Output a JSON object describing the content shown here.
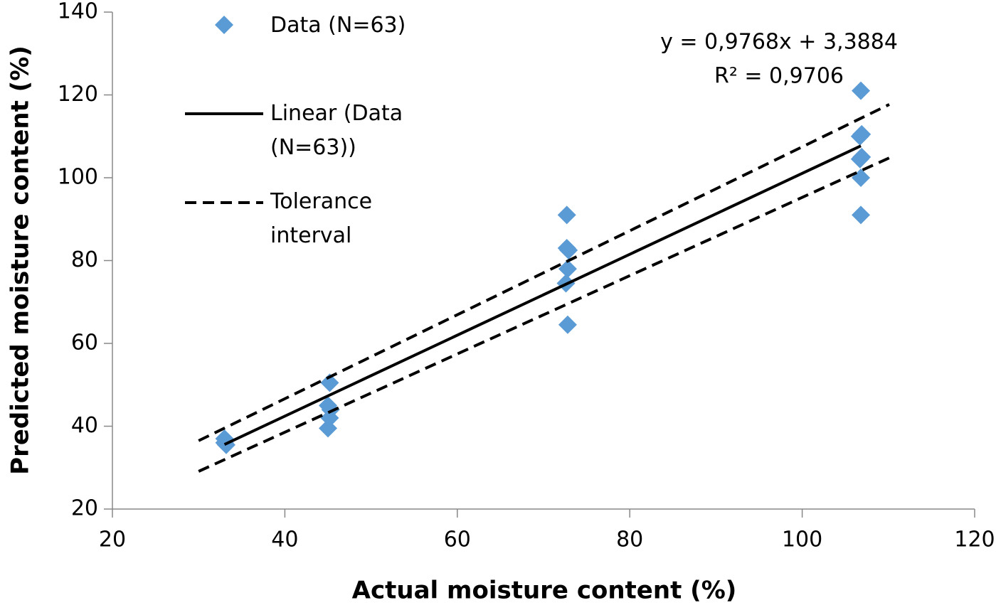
{
  "chart_data": {
    "type": "scatter",
    "x_label": "Actual moisture content (%)",
    "y_label": "Predicted moisture content (%)",
    "annotations": [
      "y = 0,9768x + 3,3884",
      "R² = 0,9706"
    ],
    "xlim": [
      20,
      120
    ],
    "xticks": [
      20,
      40,
      60,
      80,
      100,
      120
    ],
    "ylim": [
      20,
      140
    ],
    "yticks": [
      20,
      40,
      60,
      80,
      100,
      120,
      140
    ],
    "grid": false,
    "series": [
      {
        "name": "Data (N=63)",
        "type": "scatter",
        "color": "#5b9bd5",
        "x": [
          33,
          33.2,
          33,
          45.2,
          45,
          45.3,
          45.2,
          45,
          72.7,
          72.7,
          72.9,
          72.8,
          72.6,
          72.8,
          106.8,
          106.9,
          106.7,
          106.9,
          106.7,
          106.8,
          106.8
        ],
        "values": [
          37,
          35.5,
          36,
          50.5,
          45,
          44,
          42,
          39.5,
          91,
          83,
          82.5,
          78,
          74.5,
          64.5,
          121,
          110.5,
          110,
          105,
          104.5,
          100,
          91
        ]
      },
      {
        "name": "Linear (Data (N=63))",
        "type": "line",
        "style": "solid",
        "color": "#000000",
        "x": [
          33,
          106.8
        ],
        "values": [
          35.6,
          107.7
        ]
      },
      {
        "name": "Tolerance interval",
        "type": "line",
        "style": "dashed",
        "color": "#000000",
        "x": [
          30,
          110.1
        ],
        "values": [
          36.5,
          117.7
        ]
      },
      {
        "type": "line",
        "style": "dashed",
        "color": "#000000",
        "x": [
          30,
          110.1
        ],
        "values": [
          29.1,
          104.8
        ]
      }
    ]
  }
}
